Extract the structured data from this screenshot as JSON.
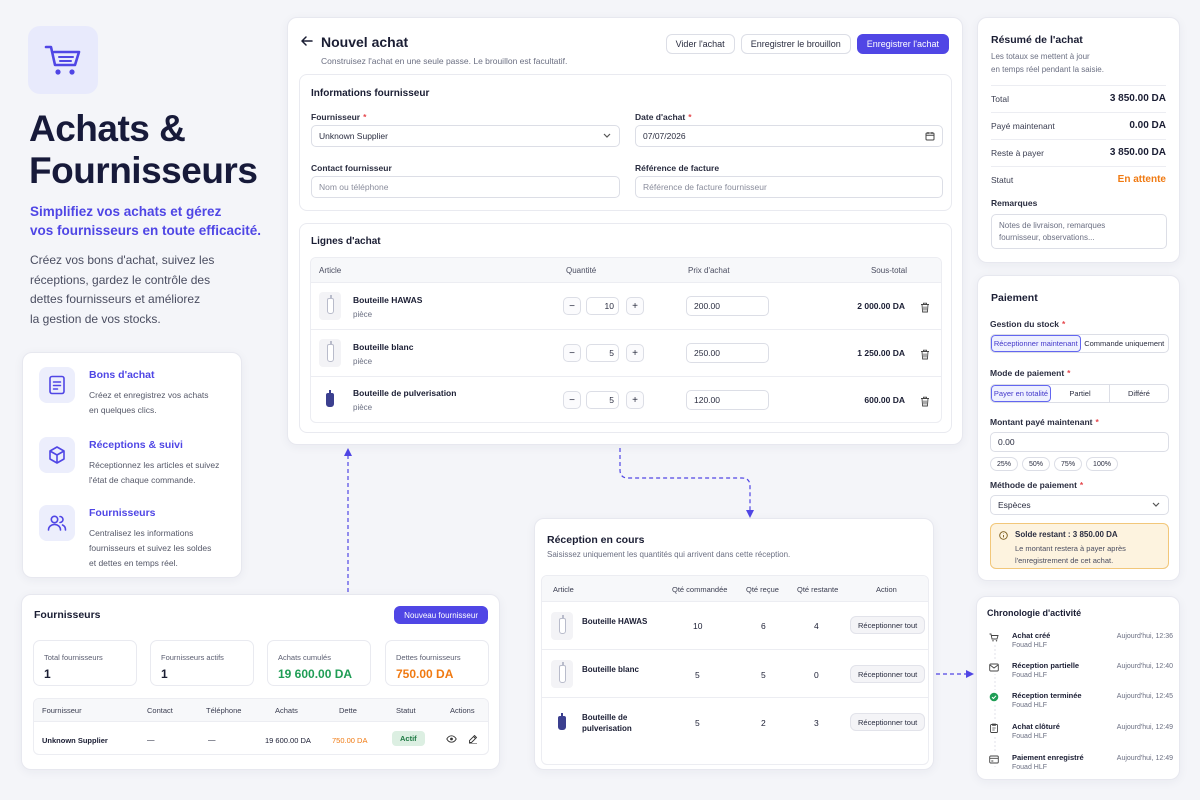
{
  "hero": {
    "title_line1": "Achats &",
    "title_line2": "Fournisseurs",
    "subtitle_line1": "Simplifiez vos achats et gérez",
    "subtitle_line2": "vos fournisseurs en toute efficacité.",
    "desc_line1": "Créez vos bons d'achat, suivez les",
    "desc_line2": "réceptions, gardez le contrôle des",
    "desc_line3": "dettes fournisseurs et améliorez",
    "desc_line4": "la gestion de vos stocks."
  },
  "features": [
    {
      "title": "Bons d'achat",
      "line1": "Créez et enregistrez vos achats",
      "line2": "en quelques clics.",
      "line3": ""
    },
    {
      "title": "Réceptions & suivi",
      "line1": "Réceptionnez les articles et suivez",
      "line2": "l'état de chaque commande.",
      "line3": ""
    },
    {
      "title": "Fournisseurs",
      "line1": "Centralisez les informations",
      "line2": "fournisseurs et suivez les soldes",
      "line3": "et dettes en temps réel."
    }
  ],
  "purchase": {
    "title": "Nouvel achat",
    "subtitle": "Construisez l'achat en une seule passe. Le brouillon est facultatif.",
    "btn_clear": "Vider l'achat",
    "btn_draft": "Enregistrer le brouillon",
    "btn_save": "Enregistrer l'achat",
    "supplier_section": "Informations fournisseur",
    "supplier_label": "Fournisseur",
    "supplier_value": "Unknown Supplier",
    "date_label": "Date d'achat",
    "date_value": "07/07/2026",
    "contact_label": "Contact fournisseur",
    "contact_placeholder": "Nom ou téléphone",
    "invoice_label": "Référence de facture",
    "invoice_placeholder": "Référence de facture fournisseur",
    "lines_title": "Lignes d'achat",
    "col_article": "Article",
    "col_qty": "Quantité",
    "col_price": "Prix d'achat",
    "col_subtotal": "Sous-total",
    "lines": [
      {
        "name": "Bouteille HAWAS",
        "unit": "pièce",
        "qty": "10",
        "price": "200.00",
        "subtotal": "2 000.00 DA"
      },
      {
        "name": "Bouteille blanc",
        "unit": "pièce",
        "qty": "5",
        "price": "250.00",
        "subtotal": "1 250.00 DA"
      },
      {
        "name": "Bouteille de pulverisation",
        "unit": "pièce",
        "qty": "5",
        "price": "120.00",
        "subtotal": "600.00 DA"
      }
    ]
  },
  "summary": {
    "title": "Résumé de l'achat",
    "desc_line1": "Les totaux se mettent à jour",
    "desc_line2": "en temps réel pendant la saisie.",
    "total_label": "Total",
    "total_value": "3 850.00 DA",
    "paid_label": "Payé maintenant",
    "paid_value": "0.00 DA",
    "rest_label": "Reste à payer",
    "rest_value": "3 850.00 DA",
    "status_label": "Statut",
    "status_value": "En attente",
    "remarks_label": "Remarques",
    "remarks_placeholder_line1": "Notes de livraison, remarques",
    "remarks_placeholder_line2": "fournisseur, observations..."
  },
  "payment": {
    "title": "Paiement",
    "stock_label": "Gestion du stock",
    "stock_opt1": "Réceptionner maintenant",
    "stock_opt2": "Commande uniquement",
    "mode_label": "Mode de paiement",
    "mode_opt1": "Payer en totalité",
    "mode_opt2": "Partiel",
    "mode_opt3": "Différé",
    "amount_label": "Montant payé maintenant",
    "amount_value": "0.00",
    "chips": [
      "25%",
      "50%",
      "75%",
      "100%"
    ],
    "method_label": "Méthode de paiement",
    "method_value": "Espèces",
    "alert_title": "Solde restant : 3 850.00 DA",
    "alert_line1": "Le montant restera à payer après",
    "alert_line2": "l'enregistrement de cet achat."
  },
  "reception": {
    "title": "Réception en cours",
    "subtitle": "Saisissez uniquement les quantités qui arrivent dans cette réception.",
    "col_article": "Article",
    "col_ordered": "Qté commandée",
    "col_received": "Qté reçue",
    "col_remaining": "Qté restante",
    "col_action": "Action",
    "action_label": "Réceptionner tout",
    "rows": [
      {
        "name1": "Bouteille HAWAS",
        "name2": "",
        "ordered": "10",
        "received": "6",
        "remaining": "4"
      },
      {
        "name1": "Bouteille blanc",
        "name2": "",
        "ordered": "5",
        "received": "5",
        "remaining": "0"
      },
      {
        "name1": "Bouteille de",
        "name2": "pulverisation",
        "ordered": "5",
        "received": "2",
        "remaining": "3"
      }
    ]
  },
  "suppliers": {
    "title": "Fournisseurs",
    "btn_new": "Nouveau fournisseur",
    "stats": [
      {
        "label": "Total fournisseurs",
        "value": "1"
      },
      {
        "label": "Fournisseurs actifs",
        "value": "1"
      },
      {
        "label": "Achats cumulés",
        "value": "19 600.00 DA"
      },
      {
        "label": "Dettes fournisseurs",
        "value": "750.00 DA"
      }
    ],
    "col_supplier": "Fournisseur",
    "col_contact": "Contact",
    "col_phone": "Téléphone",
    "col_purchases": "Achats",
    "col_debt": "Dette",
    "col_status": "Statut",
    "col_actions": "Actions",
    "row": {
      "name": "Unknown Supplier",
      "contact": "—",
      "phone": "—",
      "purchases": "19 600.00 DA",
      "debt": "750.00 DA",
      "status": "Actif"
    }
  },
  "timeline": {
    "title": "Chronologie d'activité",
    "items": [
      {
        "title": "Achat créé",
        "user": "Fouad HLF",
        "time": "Aujourd'hui, 12:36"
      },
      {
        "title": "Réception partielle",
        "user": "Fouad HLF",
        "time": "Aujourd'hui, 12:40"
      },
      {
        "title": "Réception terminée",
        "user": "Fouad HLF",
        "time": "Aujourd'hui, 12:45"
      },
      {
        "title": "Achat clôturé",
        "user": "Fouad HLF",
        "time": "Aujourd'hui, 12:49"
      },
      {
        "title": "Paiement enregistré",
        "user": "Fouad HLF",
        "time": "Aujourd'hui, 12:49"
      }
    ]
  },
  "colors": {
    "accent": "#5046e5",
    "warning": "#f07a12",
    "success": "#1f9d55",
    "alert_bg": "#fdf3df",
    "alert_border": "#f2c77a"
  }
}
